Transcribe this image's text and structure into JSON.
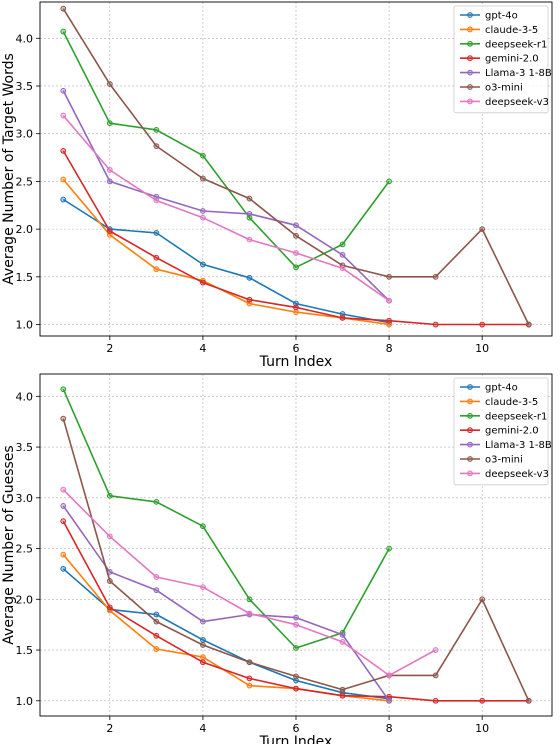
{
  "chart_data": [
    {
      "type": "line",
      "xlabel": "Turn Index",
      "ylabel": "Average Number of Target Words",
      "xlim": [
        0.5,
        11.5
      ],
      "ylim": [
        0.88,
        4.38
      ],
      "xticks": [
        2,
        4,
        6,
        8,
        10
      ],
      "yticks": [
        1.0,
        1.5,
        2.0,
        2.5,
        3.0,
        3.5,
        4.0
      ],
      "grid": true,
      "legend_position": "top-right",
      "series": [
        {
          "name": "gpt-4o",
          "color": "#1f77b4",
          "x": [
            1,
            2,
            3,
            4,
            5,
            6,
            7,
            8
          ],
          "y": [
            2.31,
            2.0,
            1.96,
            1.63,
            1.49,
            1.22,
            1.11,
            1.02
          ]
        },
        {
          "name": "claude-3-5",
          "color": "#ff7f0e",
          "x": [
            1,
            2,
            3,
            4,
            5,
            6,
            7,
            8
          ],
          "y": [
            2.52,
            1.94,
            1.58,
            1.46,
            1.22,
            1.13,
            1.07,
            1.0
          ]
        },
        {
          "name": "deepseek-r1",
          "color": "#2ca02c",
          "x": [
            1,
            2,
            3,
            4,
            5,
            6,
            7,
            8
          ],
          "y": [
            4.07,
            3.11,
            3.04,
            2.77,
            2.12,
            1.6,
            1.84,
            2.5
          ]
        },
        {
          "name": "gemini-2.0",
          "color": "#d62728",
          "x": [
            1,
            2,
            3,
            4,
            5,
            6,
            7,
            8,
            9,
            10,
            11
          ],
          "y": [
            2.82,
            1.98,
            1.7,
            1.44,
            1.26,
            1.18,
            1.07,
            1.04,
            1.0,
            1.0,
            1.0
          ]
        },
        {
          "name": "Llama-3 1-8B",
          "color": "#9467bd",
          "x": [
            1,
            2,
            3,
            4,
            5,
            6,
            7,
            8
          ],
          "y": [
            3.45,
            2.5,
            2.34,
            2.19,
            2.16,
            2.04,
            1.73,
            1.25
          ]
        },
        {
          "name": "o3-mini",
          "color": "#8c564b",
          "x": [
            1,
            2,
            3,
            4,
            5,
            6,
            7,
            8,
            9,
            10,
            11
          ],
          "y": [
            4.31,
            3.52,
            2.87,
            2.53,
            2.32,
            1.93,
            1.62,
            1.5,
            1.5,
            2.0,
            1.0
          ]
        },
        {
          "name": "deepseek-v3",
          "color": "#e377c2",
          "x": [
            1,
            2,
            3,
            4,
            5,
            6,
            7,
            8
          ],
          "y": [
            3.19,
            2.62,
            2.3,
            2.12,
            1.89,
            1.75,
            1.59,
            1.25
          ]
        }
      ]
    },
    {
      "type": "line",
      "xlabel": "Turn Index",
      "ylabel": "Average Number of Guesses",
      "xlim": [
        0.5,
        11.5
      ],
      "ylim": [
        0.85,
        4.22
      ],
      "xticks": [
        2,
        4,
        6,
        8,
        10
      ],
      "yticks": [
        1.0,
        1.5,
        2.0,
        2.5,
        3.0,
        3.5,
        4.0
      ],
      "grid": true,
      "legend_position": "top-right",
      "series": [
        {
          "name": "gpt-4o",
          "color": "#1f77b4",
          "x": [
            1,
            2,
            3,
            4,
            5,
            6,
            7,
            8
          ],
          "y": [
            2.3,
            1.9,
            1.85,
            1.6,
            1.38,
            1.2,
            1.08,
            1.02
          ]
        },
        {
          "name": "claude-3-5",
          "color": "#ff7f0e",
          "x": [
            1,
            2,
            3,
            4,
            5,
            6,
            7,
            8
          ],
          "y": [
            2.44,
            1.89,
            1.51,
            1.43,
            1.15,
            1.12,
            1.05,
            1.0
          ]
        },
        {
          "name": "deepseek-r1",
          "color": "#2ca02c",
          "x": [
            1,
            2,
            3,
            4,
            5,
            6,
            7,
            8
          ],
          "y": [
            4.07,
            3.02,
            2.96,
            2.72,
            2.0,
            1.52,
            1.67,
            2.5
          ]
        },
        {
          "name": "gemini-2.0",
          "color": "#d62728",
          "x": [
            1,
            2,
            3,
            4,
            5,
            6,
            7,
            8,
            9,
            10,
            11
          ],
          "y": [
            2.77,
            1.92,
            1.64,
            1.38,
            1.22,
            1.12,
            1.05,
            1.04,
            1.0,
            1.0,
            1.0
          ]
        },
        {
          "name": "Llama-3 1-8B",
          "color": "#9467bd",
          "x": [
            1,
            2,
            3,
            4,
            5,
            6,
            7,
            8
          ],
          "y": [
            2.92,
            2.27,
            2.09,
            1.78,
            1.85,
            1.82,
            1.65,
            1.0
          ]
        },
        {
          "name": "o3-mini",
          "color": "#8c564b",
          "x": [
            1,
            2,
            3,
            4,
            5,
            6,
            7,
            8,
            9,
            10,
            11
          ],
          "y": [
            3.78,
            2.18,
            1.78,
            1.55,
            1.38,
            1.24,
            1.11,
            1.25,
            1.25,
            2.0,
            1.0
          ]
        },
        {
          "name": "deepseek-v3",
          "color": "#e377c2",
          "x": [
            1,
            2,
            3,
            4,
            5,
            6,
            7,
            8,
            9
          ],
          "y": [
            3.08,
            2.62,
            2.22,
            2.12,
            1.86,
            1.75,
            1.58,
            1.25,
            1.5
          ]
        }
      ]
    }
  ]
}
